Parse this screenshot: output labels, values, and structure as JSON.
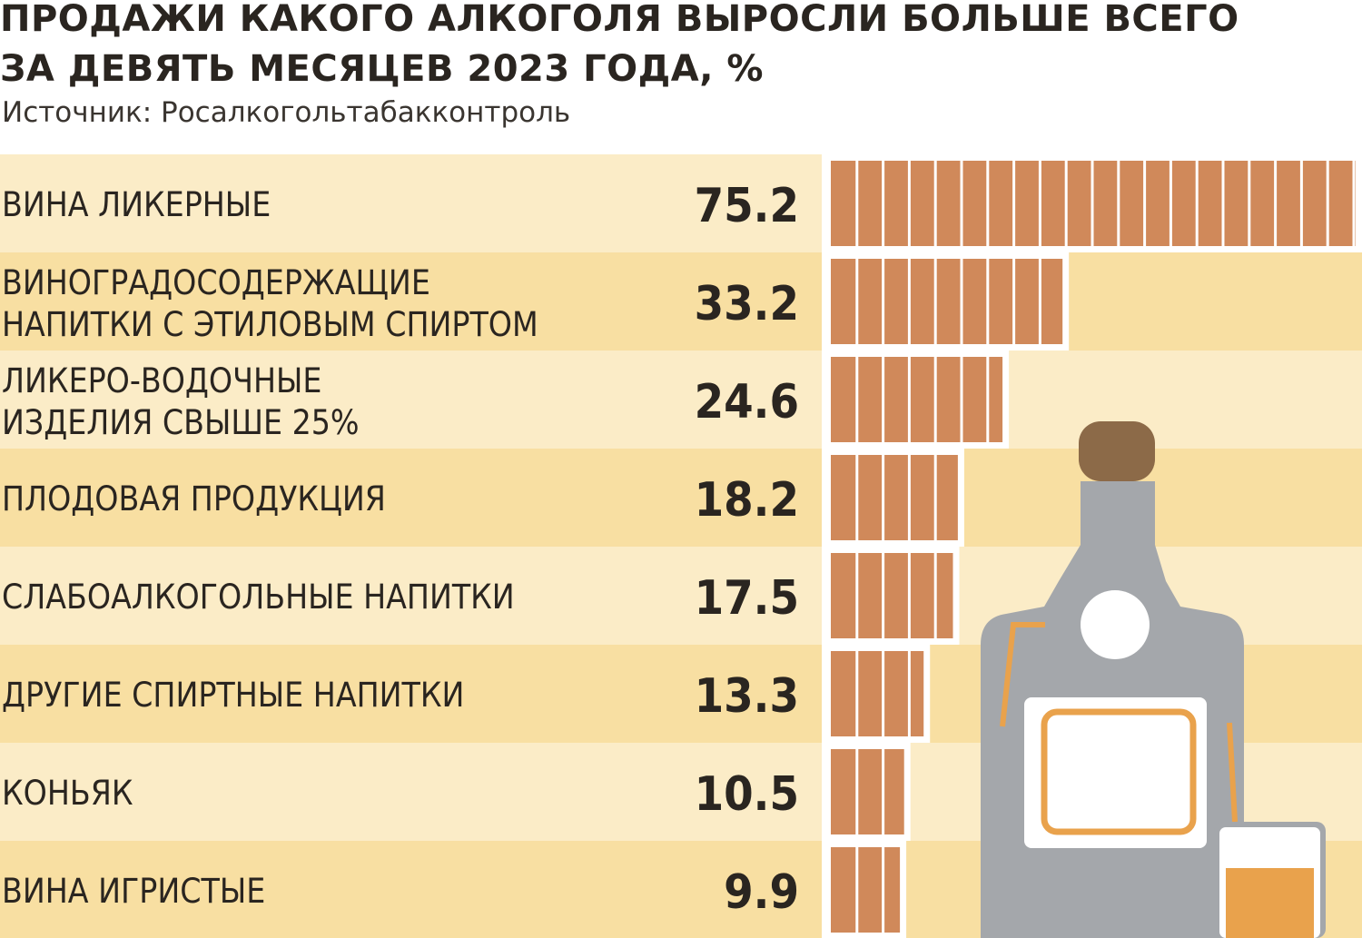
{
  "header": {
    "title_line1": "ПРОДАЖИ КАКОГО АЛКОГОЛЯ ВЫРОСЛИ БОЛЬШЕ ВСЕГО",
    "title_line2": "ЗА ДЕВЯТЬ МЕСЯЦЕВ 2023 ГОДА, %",
    "source": "Источник: Росалкогольтабакконтроль"
  },
  "colors": {
    "row_light": "#fbecc7",
    "row_dark": "#f8dfa2",
    "bar": "#d0895a",
    "bar_stripe": "#ffffff",
    "bottle": "#a4a7ab",
    "cork": "#8c6a48",
    "accent": "#e9a24c",
    "text": "#2a2520"
  },
  "chart_data": {
    "type": "bar",
    "orientation": "horizontal",
    "title": "ПРОДАЖИ КАКОГО АЛКОГОЛЯ ВЫРОСЛИ БОЛЬШЕ ВСЕГО ЗА ДЕВЯТЬ МЕСЯЦЕВ 2023 ГОДА, %",
    "subtitle": "Источник: Росалкогольтабакконтроль",
    "categories": [
      [
        "ВИНА ЛИКЕРНЫЕ"
      ],
      [
        "ВИНОГРАДОСОДЕРЖАЩИЕ",
        "НАПИТКИ С ЭТИЛОВЫМ СПИРТОМ"
      ],
      [
        "ЛИКЕРО-ВОДОЧНЫЕ",
        "ИЗДЕЛИЯ СВЫШЕ 25%"
      ],
      [
        "ПЛОДОВАЯ ПРОДУКЦИЯ"
      ],
      [
        "СЛАБОАЛКОГОЛЬНЫЕ НАПИТКИ"
      ],
      [
        "ДРУГИЕ СПИРТНЫЕ НАПИТКИ"
      ],
      [
        "КОНЬЯК"
      ],
      [
        "ВИНА ИГРИСТЫЕ"
      ]
    ],
    "values": [
      75.2,
      33.2,
      24.6,
      18.2,
      17.5,
      13.3,
      10.5,
      9.9
    ],
    "value_labels": [
      "75.2",
      "33.2",
      "24.6",
      "18.2",
      "17.5",
      "13.3",
      "10.5",
      "9.9"
    ],
    "xlim": [
      0,
      75.2
    ],
    "grid": false,
    "legend": "none"
  }
}
